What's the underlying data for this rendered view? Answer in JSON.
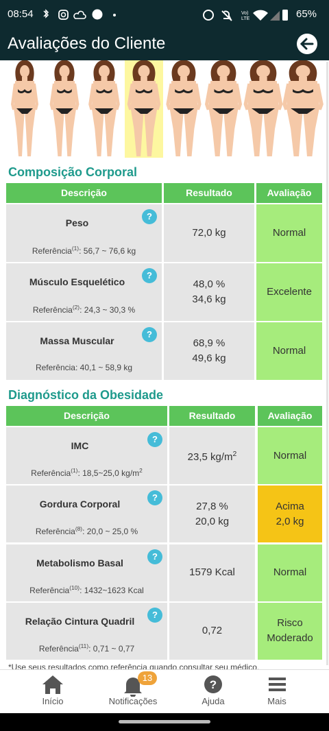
{
  "status_bar": {
    "time": "08:54",
    "battery": "65%"
  },
  "header": {
    "title": "Avaliações do Cliente"
  },
  "sections": [
    {
      "title": "Composição Corporal",
      "columns": [
        "Descrição",
        "Resultado",
        "Avaliação"
      ],
      "rows": [
        {
          "name": "Peso",
          "reference": [
            "Referência",
            "(1)",
            ": 56,7 ~ 76,6 kg"
          ],
          "result": [
            [
              "72,0 kg"
            ]
          ],
          "rating": [
            "Normal"
          ],
          "rating_color": "#a6ec7c"
        },
        {
          "name": "Músculo Esquelético",
          "reference": [
            "Referência",
            "(2)",
            ": 24,3 ~ 30,3 %"
          ],
          "result": [
            [
              "48,0 %"
            ],
            [
              "34,6 kg"
            ]
          ],
          "rating": [
            "Excelente"
          ],
          "rating_color": "#a6ec7c"
        },
        {
          "name": "Massa Muscular",
          "reference": [
            "Referência: 40,1 ~ 58,9 kg"
          ],
          "result": [
            [
              "68,9 %"
            ],
            [
              "49,6 kg"
            ]
          ],
          "rating": [
            "Normal"
          ],
          "rating_color": "#a6ec7c"
        }
      ]
    },
    {
      "title": "Diagnóstico da Obesidade",
      "columns": [
        "Descrição",
        "Resultado",
        "Avaliação"
      ],
      "rows": [
        {
          "name": "IMC",
          "reference": [
            "Referência",
            "(1)",
            ": 18,5~25,0 kg/m",
            "2"
          ],
          "result": [
            [
              "23,5 kg/m",
              "2"
            ]
          ],
          "rating": [
            "Normal"
          ],
          "rating_color": "#a6ec7c"
        },
        {
          "name": "Gordura Corporal",
          "reference": [
            "Referência",
            "(8)",
            ": 20,0 ~ 25,0 %"
          ],
          "result": [
            [
              "27,8 %"
            ],
            [
              "20,0 kg"
            ]
          ],
          "rating": [
            "Acima",
            "2,0 kg"
          ],
          "rating_color": "#f5c416"
        },
        {
          "name": "Metabolismo Basal",
          "reference": [
            "Referência",
            "(10)",
            ": 1432~1623 Kcal"
          ],
          "result": [
            [
              "1579 Kcal"
            ]
          ],
          "rating": [
            "Normal"
          ],
          "rating_color": "#a6ec7c"
        },
        {
          "name": "Relação Cintura Quadril",
          "reference": [
            "Referência",
            "(11)",
            ": 0,71 ~ 0,77"
          ],
          "result": [
            [
              "0,72"
            ]
          ],
          "rating": [
            "Risco",
            "Moderado"
          ],
          "rating_color": "#a6ec7c"
        }
      ]
    }
  ],
  "footnote": "*Use seus resultados como referência quando consultar seu médico.",
  "nav": {
    "items": [
      "Início",
      "Notificações",
      "Ajuda",
      "Mais"
    ],
    "badge": "13"
  }
}
